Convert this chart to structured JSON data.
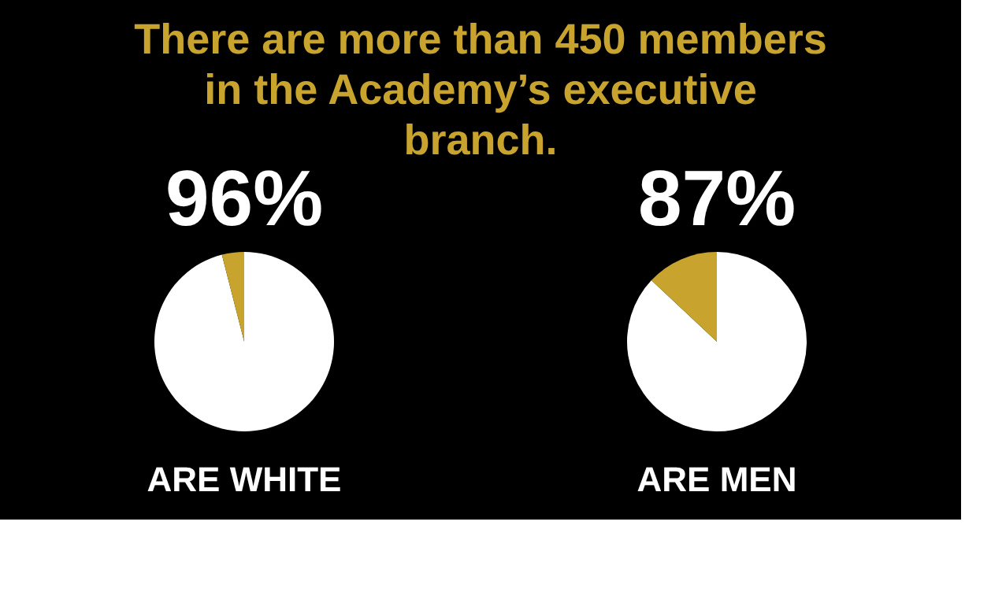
{
  "chart_data": [
    {
      "type": "other",
      "title": "There are more than 450 members in the Academy’s executive branch."
    },
    {
      "type": "pie",
      "title": "96%",
      "annotations": [
        "ARE WHITE"
      ],
      "categories": [
        null,
        null
      ],
      "values": [
        96,
        4
      ],
      "colors": [
        "#ffffff",
        "#c8a42e"
      ]
    },
    {
      "type": "pie",
      "title": "87%",
      "annotations": [
        "ARE MEN"
      ],
      "categories": [
        null,
        null
      ],
      "values": [
        87,
        13
      ],
      "colors": [
        "#ffffff",
        "#c8a42e"
      ]
    }
  ]
}
